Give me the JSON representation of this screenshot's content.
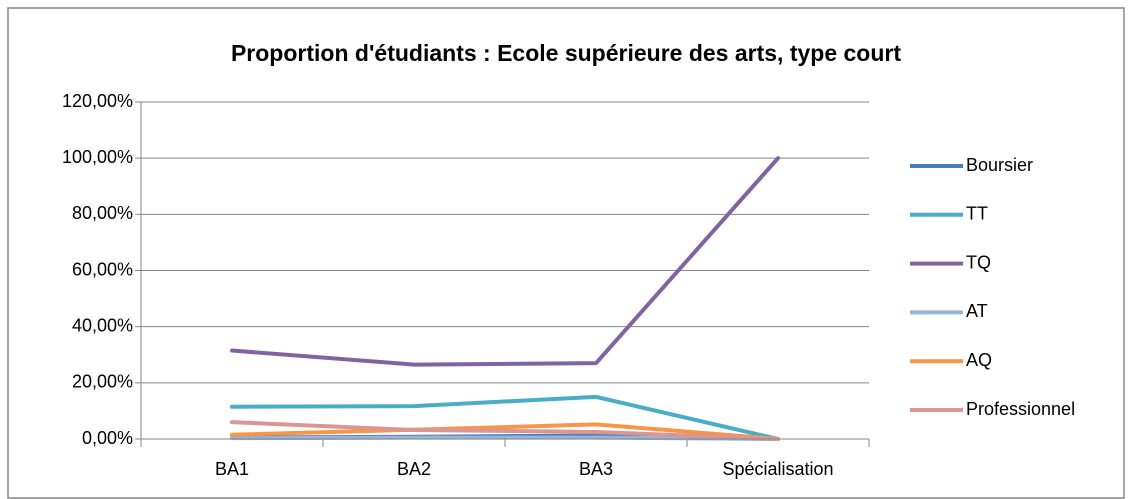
{
  "chart_data": {
    "type": "line",
    "title": "Proportion d'étudiants : Ecole supérieure des arts, type court",
    "categories": [
      "BA1",
      "BA2",
      "BA3",
      "Spécialisation"
    ],
    "series": [
      {
        "name": "Boursier",
        "color": "#4a7ebb",
        "values": [
          0.5,
          0.8,
          1.2,
          0
        ]
      },
      {
        "name": "TT",
        "color": "#4bacc6",
        "values": [
          11.5,
          11.7,
          15,
          0
        ]
      },
      {
        "name": "TQ",
        "color": "#8064a2",
        "values": [
          31.5,
          26.5,
          27,
          100
        ]
      },
      {
        "name": "AT",
        "color": "#98b4d9",
        "values": [
          0.3,
          0.5,
          0.5,
          0
        ]
      },
      {
        "name": "AQ",
        "color": "#f79646",
        "values": [
          1.5,
          3.3,
          5.2,
          0
        ]
      },
      {
        "name": "Professionnel",
        "color": "#d99694",
        "values": [
          6,
          3.2,
          2.5,
          0
        ]
      }
    ],
    "ylim": [
      0,
      120
    ],
    "yticks": [
      {
        "value": 0,
        "label": "0,00%"
      },
      {
        "value": 20,
        "label": "20,00%"
      },
      {
        "value": 40,
        "label": "40,00%"
      },
      {
        "value": 60,
        "label": "60,00%"
      },
      {
        "value": 80,
        "label": "80,00%"
      },
      {
        "value": 100,
        "label": "100,00%"
      },
      {
        "value": 120,
        "label": "120,00%"
      }
    ],
    "grid": true,
    "legend": "right"
  }
}
